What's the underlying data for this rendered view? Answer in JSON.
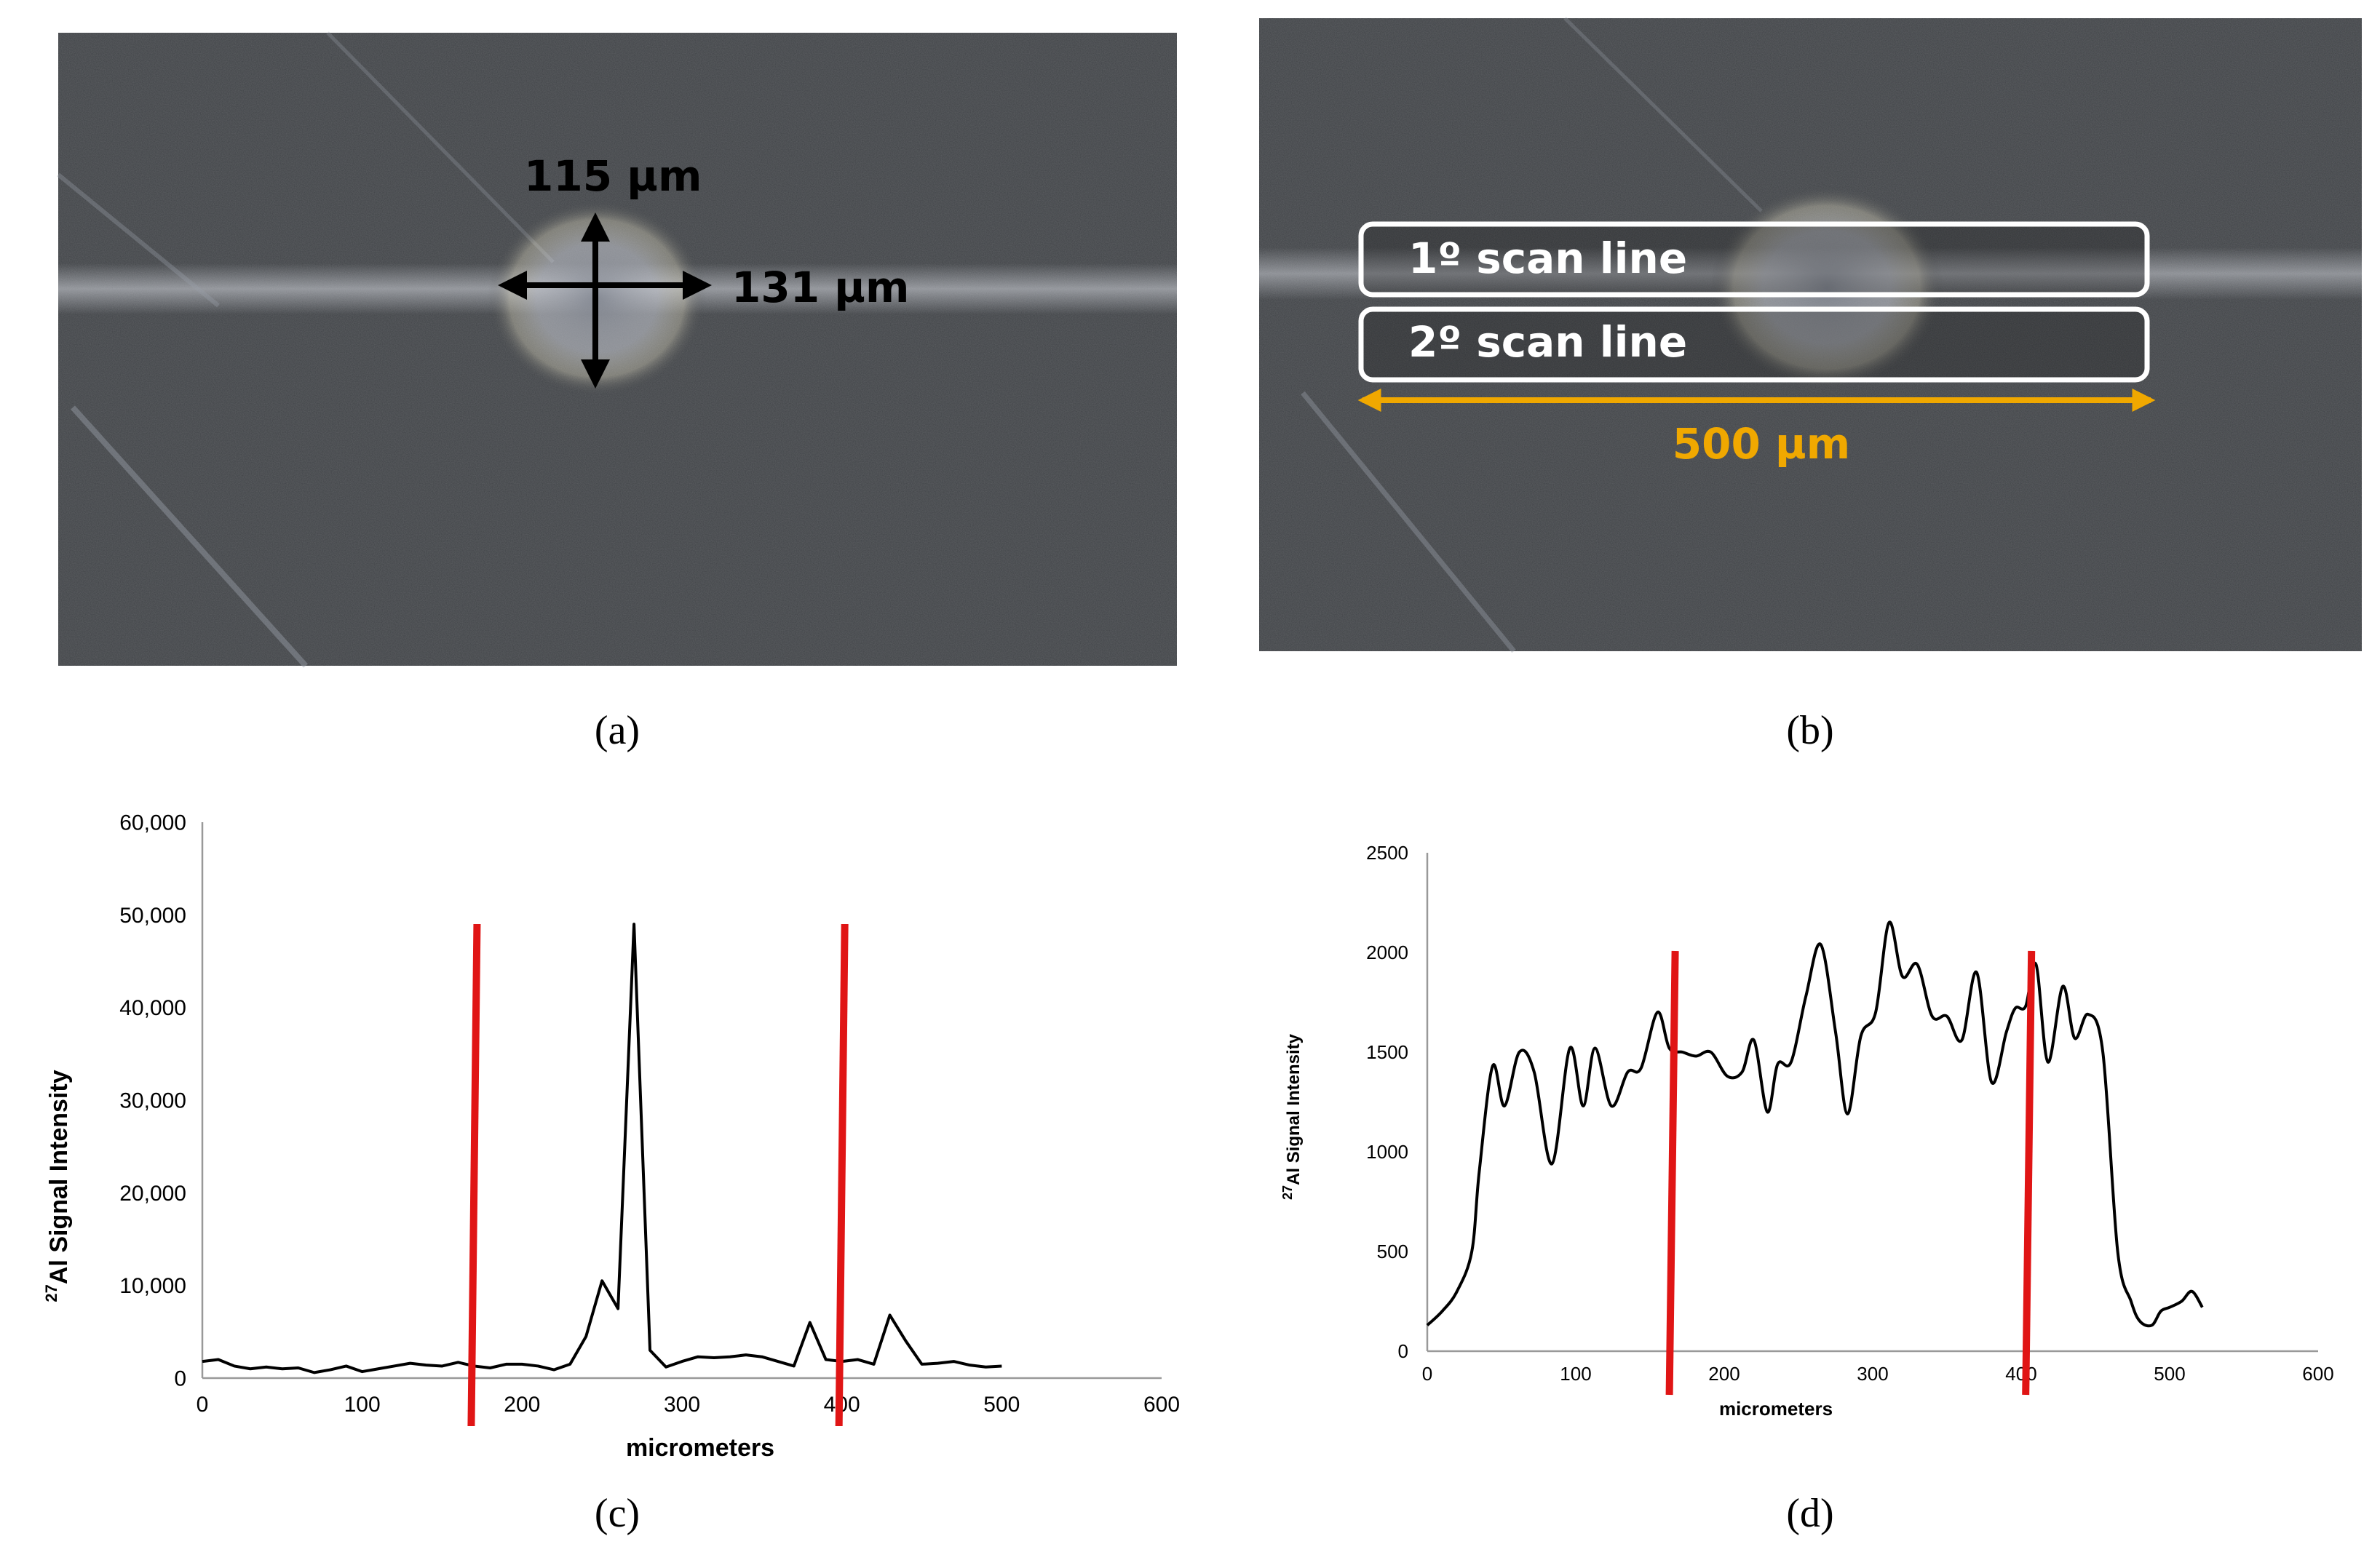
{
  "panel_a": {
    "label": "(a)",
    "height_annotation": "115 µm",
    "width_annotation": "131 µm"
  },
  "panel_b": {
    "label": "(b)",
    "scan_line_1": "1º scan line",
    "scan_line_2": "2º scan line",
    "length_annotation": "500 µm",
    "length_color": "#F0A800"
  },
  "colors": {
    "marker": "#E01515",
    "series": "#000000",
    "axis": "#999999"
  },
  "chart_data": [
    {
      "type": "line",
      "panel": "(c)",
      "title": "",
      "xlabel": "micrometers",
      "ylabel": "Al Signal Intensity",
      "ylabel_superscript": "27",
      "xlim": [
        0,
        600
      ],
      "ylim": [
        0,
        60000
      ],
      "x_ticks": [
        "0",
        "100",
        "200",
        "300",
        "400",
        "500",
        "600"
      ],
      "y_ticks": [
        "0",
        "10,000",
        "20,000",
        "30,000",
        "40,000",
        "50,000",
        "60,000"
      ],
      "grid": false,
      "markers_x": [
        170,
        400
      ],
      "series": [
        {
          "name": "27Al",
          "x": [
            0,
            10,
            20,
            30,
            40,
            50,
            60,
            70,
            80,
            90,
            100,
            110,
            120,
            130,
            140,
            150,
            160,
            170,
            180,
            190,
            200,
            210,
            220,
            230,
            240,
            250,
            260,
            270,
            280,
            290,
            300,
            310,
            320,
            330,
            340,
            350,
            360,
            370,
            380,
            390,
            400,
            410,
            420,
            430,
            440,
            450,
            460,
            470,
            480,
            490,
            500
          ],
          "values": [
            1800,
            2000,
            1300,
            1000,
            1200,
            1000,
            1100,
            600,
            900,
            1300,
            700,
            1000,
            1300,
            1600,
            1400,
            1300,
            1700,
            1300,
            1100,
            1500,
            1500,
            1300,
            900,
            1500,
            4500,
            10500,
            7500,
            49000,
            3000,
            1200,
            1800,
            2300,
            2200,
            2300,
            2500,
            2300,
            1800,
            1300,
            6000,
            2000,
            1800,
            2000,
            1500,
            6800,
            4000,
            1500,
            1600,
            1800,
            1400,
            1200,
            1300
          ]
        }
      ]
    },
    {
      "type": "line",
      "panel": "(d)",
      "title": "",
      "xlabel": "micrometers",
      "ylabel": "Al  Signal Intensity",
      "ylabel_superscript": "27",
      "xlim": [
        0,
        600
      ],
      "ylim": [
        0,
        2500
      ],
      "x_ticks": [
        "0",
        "100",
        "200",
        "300",
        "400",
        "500",
        "600"
      ],
      "y_ticks": [
        "0",
        "500",
        "1000",
        "1500",
        "2000",
        "2500"
      ],
      "grid": false,
      "markers_x": [
        165,
        405
      ],
      "series": [
        {
          "name": "27Al",
          "x": [
            0,
            10,
            20,
            30,
            35,
            44,
            52,
            62,
            72,
            84,
            96,
            105,
            113,
            124,
            135,
            144,
            155,
            163,
            172,
            181,
            191,
            202,
            212,
            220,
            229,
            236,
            245,
            255,
            265,
            275,
            283,
            292,
            302,
            311,
            320,
            330,
            340,
            350,
            360,
            370,
            380,
            390,
            396,
            403,
            410,
            418,
            428,
            436,
            445,
            455,
            465,
            474,
            480,
            488,
            494,
            500,
            508,
            515,
            522
          ],
          "values": [
            130,
            200,
            300,
            500,
            900,
            1430,
            1230,
            1500,
            1400,
            940,
            1520,
            1230,
            1520,
            1230,
            1400,
            1420,
            1700,
            1520,
            1500,
            1480,
            1500,
            1380,
            1400,
            1560,
            1200,
            1440,
            1450,
            1780,
            2040,
            1600,
            1190,
            1580,
            1700,
            2150,
            1880,
            1940,
            1680,
            1680,
            1560,
            1900,
            1350,
            1600,
            1720,
            1730,
            1940,
            1450,
            1830,
            1570,
            1690,
            1500,
            500,
            250,
            150,
            130,
            200,
            220,
            250,
            300,
            220
          ]
        }
      ]
    }
  ]
}
